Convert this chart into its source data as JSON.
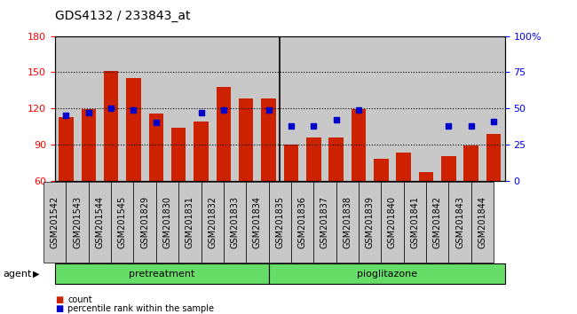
{
  "title": "GDS4132 / 233843_at",
  "samples": [
    "GSM201542",
    "GSM201543",
    "GSM201544",
    "GSM201545",
    "GSM201829",
    "GSM201830",
    "GSM201831",
    "GSM201832",
    "GSM201833",
    "GSM201834",
    "GSM201835",
    "GSM201836",
    "GSM201837",
    "GSM201838",
    "GSM201839",
    "GSM201840",
    "GSM201841",
    "GSM201842",
    "GSM201843",
    "GSM201844"
  ],
  "counts": [
    113,
    119,
    151,
    145,
    116,
    104,
    109,
    138,
    128,
    128,
    90,
    96,
    96,
    119,
    78,
    83,
    67,
    80,
    89,
    99
  ],
  "percentiles": [
    45,
    47,
    50,
    49,
    40,
    null,
    47,
    49,
    null,
    49,
    38,
    38,
    42,
    49,
    null,
    null,
    null,
    38,
    38,
    41
  ],
  "ylim_left": [
    60,
    180
  ],
  "ylim_right": [
    0,
    100
  ],
  "yticks_left": [
    60,
    90,
    120,
    150,
    180
  ],
  "yticks_right": [
    0,
    25,
    50,
    75,
    100
  ],
  "ytick_right_labels": [
    "0",
    "25",
    "50",
    "75",
    "100%"
  ],
  "group_separator_idx": 9,
  "bar_color": "#CC2200",
  "dot_color": "#0000CC",
  "bar_width": 0.65,
  "cell_bg_color": "#C8C8C8",
  "plot_bg_color": "#FFFFFF",
  "green_color": "#66DD66",
  "legend_items": [
    {
      "label": "count",
      "color": "#CC2200"
    },
    {
      "label": "percentile rank within the sample",
      "color": "#0000CC"
    }
  ],
  "agent_label": "agent",
  "grid_yticks": [
    90,
    120,
    150
  ],
  "grid_style": "dotted",
  "grid_color": "black",
  "grid_linewidth": 0.8,
  "title_fontsize": 10,
  "axis_fontsize": 8,
  "tick_label_fontsize": 7,
  "group_fontsize": 8
}
